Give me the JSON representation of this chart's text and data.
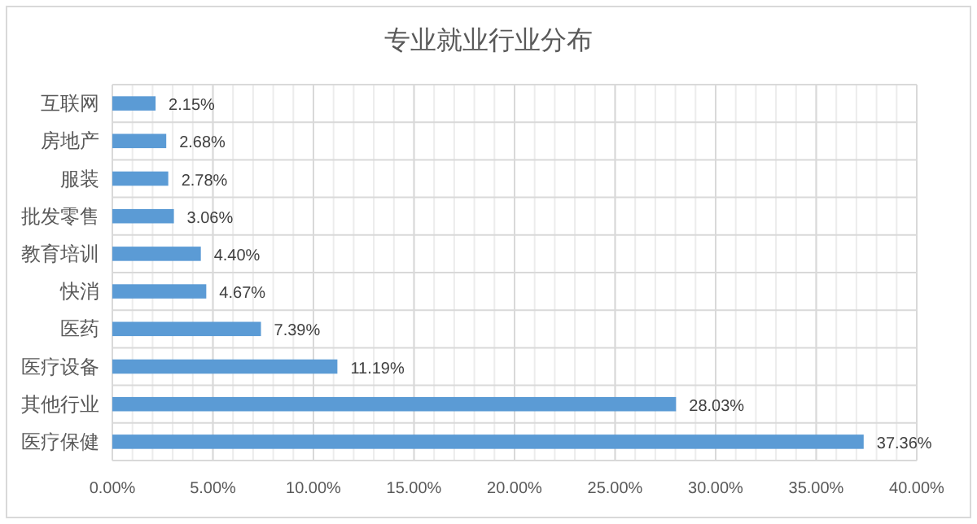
{
  "chart_data": {
    "type": "bar",
    "orientation": "horizontal",
    "title": "专业就业行业分布",
    "categories": [
      "互联网",
      "房地产",
      "服装",
      "批发零售",
      "教育培训",
      "快消",
      "医药",
      "医疗设备",
      "其他行业",
      "医疗保健"
    ],
    "values": [
      2.15,
      2.68,
      2.78,
      3.06,
      4.4,
      4.67,
      7.39,
      11.19,
      28.03,
      37.36
    ],
    "value_labels": [
      "2.15%",
      "2.68%",
      "2.78%",
      "3.06%",
      "4.40%",
      "4.67%",
      "7.39%",
      "11.19%",
      "28.03%",
      "37.36%"
    ],
    "color": "#5b9bd5",
    "grid": true,
    "xlim": [
      0,
      40
    ],
    "xticks": [
      {
        "value": 0,
        "label": "0.00%"
      },
      {
        "value": 5,
        "label": "5.00%"
      },
      {
        "value": 10,
        "label": "10.00%"
      },
      {
        "value": 15,
        "label": "15.00%"
      },
      {
        "value": 20,
        "label": "20.00%"
      },
      {
        "value": 25,
        "label": "25.00%"
      },
      {
        "value": 30,
        "label": "30.00%"
      },
      {
        "value": 35,
        "label": "35.00%"
      },
      {
        "value": 40,
        "label": "40.00%"
      }
    ]
  }
}
